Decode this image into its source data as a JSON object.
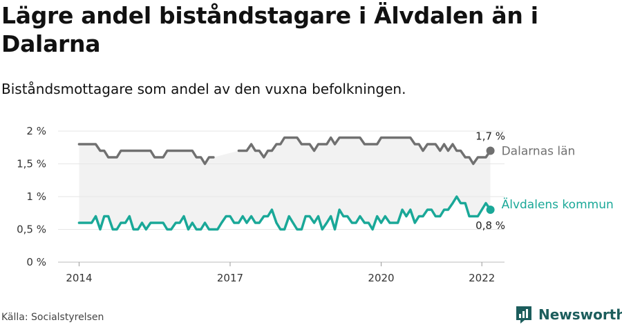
{
  "header": {
    "title": "Lägre andel biståndstagare i Älvdalen än i Dalarna",
    "subtitle": "Biståndsmottagare som andel av den vuxna befolkningen."
  },
  "footer": {
    "source": "Källa: Socialstyrelsen",
    "brand": "Newsworthy"
  },
  "colors": {
    "dalarna": "#707070",
    "alvdalen": "#1aa898",
    "band": "#f2f2f2",
    "brand": "#1c5d5c"
  },
  "chart_data": {
    "type": "line",
    "x_ticks": [
      {
        "label": "2014",
        "x": 2014.0
      },
      {
        "label": "2017",
        "x": 2017.0
      },
      {
        "label": "2020",
        "x": 2020.0
      },
      {
        "label": "2022",
        "x": 2022.0
      }
    ],
    "y_ticks": [
      {
        "label": "0 %",
        "value": 0
      },
      {
        "label": "0,5 %",
        "value": 0.5
      },
      {
        "label": "1 %",
        "value": 1
      },
      {
        "label": "1,5 %",
        "value": 1.5
      },
      {
        "label": "2 %",
        "value": 2
      }
    ],
    "ylim": [
      0,
      2
    ],
    "xlim": [
      2013.5,
      2022.45
    ],
    "series": [
      {
        "name": "Dalarnas län",
        "end_label": "1,7 %",
        "points": [
          [
            2014.0,
            1.8
          ],
          [
            2014.08,
            1.8
          ],
          [
            2014.17,
            1.8
          ],
          [
            2014.25,
            1.8
          ],
          [
            2014.33,
            1.8
          ],
          [
            2014.42,
            1.7
          ],
          [
            2014.5,
            1.7
          ],
          [
            2014.58,
            1.6
          ],
          [
            2014.67,
            1.6
          ],
          [
            2014.75,
            1.6
          ],
          [
            2014.83,
            1.7
          ],
          [
            2014.92,
            1.7
          ],
          [
            2015.0,
            1.7
          ],
          [
            2015.08,
            1.7
          ],
          [
            2015.17,
            1.7
          ],
          [
            2015.25,
            1.7
          ],
          [
            2015.33,
            1.7
          ],
          [
            2015.42,
            1.7
          ],
          [
            2015.5,
            1.6
          ],
          [
            2015.58,
            1.6
          ],
          [
            2015.67,
            1.6
          ],
          [
            2015.75,
            1.7
          ],
          [
            2015.83,
            1.7
          ],
          [
            2015.92,
            1.7
          ],
          [
            2016.0,
            1.7
          ],
          [
            2016.08,
            1.7
          ],
          [
            2016.17,
            1.7
          ],
          [
            2016.25,
            1.7
          ],
          [
            2016.33,
            1.6
          ],
          [
            2016.42,
            1.6
          ],
          [
            2016.5,
            1.5
          ],
          [
            2016.58,
            1.6
          ],
          [
            2016.67,
            1.6
          ],
          null,
          [
            2017.17,
            1.7
          ],
          [
            2017.25,
            1.7
          ],
          [
            2017.33,
            1.7
          ],
          [
            2017.42,
            1.8
          ],
          [
            2017.5,
            1.7
          ],
          [
            2017.58,
            1.7
          ],
          [
            2017.67,
            1.6
          ],
          [
            2017.75,
            1.7
          ],
          [
            2017.83,
            1.7
          ],
          [
            2017.92,
            1.8
          ],
          [
            2018.0,
            1.8
          ],
          [
            2018.08,
            1.9
          ],
          [
            2018.17,
            1.9
          ],
          [
            2018.25,
            1.9
          ],
          [
            2018.33,
            1.9
          ],
          [
            2018.42,
            1.8
          ],
          [
            2018.5,
            1.8
          ],
          [
            2018.58,
            1.8
          ],
          [
            2018.67,
            1.7
          ],
          [
            2018.75,
            1.8
          ],
          [
            2018.83,
            1.8
          ],
          [
            2018.92,
            1.8
          ],
          [
            2019.0,
            1.9
          ],
          [
            2019.08,
            1.8
          ],
          [
            2019.17,
            1.9
          ],
          [
            2019.25,
            1.9
          ],
          [
            2019.33,
            1.9
          ],
          [
            2019.42,
            1.9
          ],
          [
            2019.5,
            1.9
          ],
          [
            2019.58,
            1.9
          ],
          [
            2019.67,
            1.8
          ],
          [
            2019.75,
            1.8
          ],
          [
            2019.83,
            1.8
          ],
          [
            2019.92,
            1.8
          ],
          [
            2020.0,
            1.9
          ],
          [
            2020.08,
            1.9
          ],
          [
            2020.17,
            1.9
          ],
          [
            2020.25,
            1.9
          ],
          [
            2020.33,
            1.9
          ],
          [
            2020.42,
            1.9
          ],
          [
            2020.5,
            1.9
          ],
          [
            2020.58,
            1.9
          ],
          [
            2020.67,
            1.8
          ],
          [
            2020.75,
            1.8
          ],
          [
            2020.83,
            1.7
          ],
          [
            2020.92,
            1.8
          ],
          [
            2021.0,
            1.8
          ],
          [
            2021.08,
            1.8
          ],
          [
            2021.17,
            1.7
          ],
          [
            2021.25,
            1.8
          ],
          [
            2021.33,
            1.7
          ],
          [
            2021.42,
            1.8
          ],
          [
            2021.5,
            1.7
          ],
          [
            2021.58,
            1.7
          ],
          [
            2021.67,
            1.6
          ],
          [
            2021.75,
            1.6
          ],
          [
            2021.83,
            1.5
          ],
          [
            2021.92,
            1.6
          ],
          [
            2022.0,
            1.6
          ],
          [
            2022.08,
            1.6
          ],
          [
            2022.17,
            1.7
          ]
        ]
      },
      {
        "name": "Älvdalens kommun",
        "end_label": "0,8 %",
        "points": [
          [
            2014.0,
            0.6
          ],
          [
            2014.08,
            0.6
          ],
          [
            2014.17,
            0.6
          ],
          [
            2014.25,
            0.6
          ],
          [
            2014.33,
            0.7
          ],
          [
            2014.42,
            0.5
          ],
          [
            2014.5,
            0.7
          ],
          [
            2014.58,
            0.7
          ],
          [
            2014.67,
            0.5
          ],
          [
            2014.75,
            0.5
          ],
          [
            2014.83,
            0.6
          ],
          [
            2014.92,
            0.6
          ],
          [
            2015.0,
            0.7
          ],
          [
            2015.08,
            0.5
          ],
          [
            2015.17,
            0.5
          ],
          [
            2015.25,
            0.6
          ],
          [
            2015.33,
            0.5
          ],
          [
            2015.42,
            0.6
          ],
          [
            2015.5,
            0.6
          ],
          [
            2015.58,
            0.6
          ],
          [
            2015.67,
            0.6
          ],
          [
            2015.75,
            0.5
          ],
          [
            2015.83,
            0.5
          ],
          [
            2015.92,
            0.6
          ],
          [
            2016.0,
            0.6
          ],
          [
            2016.08,
            0.7
          ],
          [
            2016.17,
            0.5
          ],
          [
            2016.25,
            0.6
          ],
          [
            2016.33,
            0.5
          ],
          [
            2016.42,
            0.5
          ],
          [
            2016.5,
            0.6
          ],
          [
            2016.58,
            0.5
          ],
          [
            2016.67,
            0.5
          ],
          [
            2016.75,
            0.5
          ],
          [
            2016.83,
            0.6
          ],
          [
            2016.92,
            0.7
          ],
          [
            2017.0,
            0.7
          ],
          [
            2017.08,
            0.6
          ],
          [
            2017.17,
            0.6
          ],
          [
            2017.25,
            0.7
          ],
          [
            2017.33,
            0.6
          ],
          [
            2017.42,
            0.7
          ],
          [
            2017.5,
            0.6
          ],
          [
            2017.58,
            0.6
          ],
          [
            2017.67,
            0.7
          ],
          [
            2017.75,
            0.7
          ],
          [
            2017.83,
            0.8
          ],
          [
            2017.92,
            0.6
          ],
          [
            2018.0,
            0.5
          ],
          [
            2018.08,
            0.5
          ],
          [
            2018.17,
            0.7
          ],
          [
            2018.25,
            0.6
          ],
          [
            2018.33,
            0.5
          ],
          [
            2018.42,
            0.5
          ],
          [
            2018.5,
            0.7
          ],
          [
            2018.58,
            0.7
          ],
          [
            2018.67,
            0.6
          ],
          [
            2018.75,
            0.7
          ],
          [
            2018.83,
            0.5
          ],
          [
            2018.92,
            0.6
          ],
          [
            2019.0,
            0.7
          ],
          [
            2019.08,
            0.5
          ],
          [
            2019.17,
            0.8
          ],
          [
            2019.25,
            0.7
          ],
          [
            2019.33,
            0.7
          ],
          [
            2019.42,
            0.6
          ],
          [
            2019.5,
            0.6
          ],
          [
            2019.58,
            0.7
          ],
          [
            2019.67,
            0.6
          ],
          [
            2019.75,
            0.6
          ],
          [
            2019.83,
            0.5
          ],
          [
            2019.92,
            0.7
          ],
          [
            2020.0,
            0.6
          ],
          [
            2020.08,
            0.7
          ],
          [
            2020.17,
            0.6
          ],
          [
            2020.25,
            0.6
          ],
          [
            2020.33,
            0.6
          ],
          [
            2020.42,
            0.8
          ],
          [
            2020.5,
            0.7
          ],
          [
            2020.58,
            0.8
          ],
          [
            2020.67,
            0.6
          ],
          [
            2020.75,
            0.7
          ],
          [
            2020.83,
            0.7
          ],
          [
            2020.92,
            0.8
          ],
          [
            2021.0,
            0.8
          ],
          [
            2021.08,
            0.7
          ],
          [
            2021.17,
            0.7
          ],
          [
            2021.25,
            0.8
          ],
          [
            2021.33,
            0.8
          ],
          [
            2021.42,
            0.9
          ],
          [
            2021.5,
            1.0
          ],
          [
            2021.58,
            0.9
          ],
          [
            2021.67,
            0.9
          ],
          [
            2021.75,
            0.7
          ],
          [
            2021.83,
            0.7
          ],
          [
            2021.92,
            0.7
          ],
          [
            2022.0,
            0.8
          ],
          [
            2022.08,
            0.9
          ],
          [
            2022.17,
            0.8
          ]
        ]
      }
    ]
  }
}
